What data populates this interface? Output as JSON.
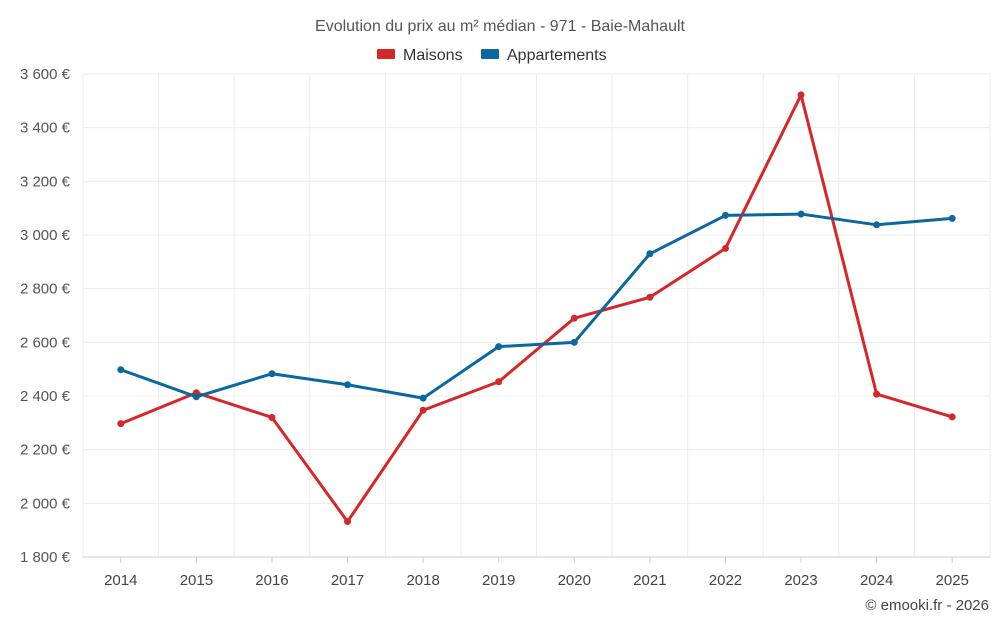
{
  "chart_data": {
    "type": "line",
    "title": "Evolution du prix au m² médian - 971 - Baie-Mahault",
    "categories": [
      "2014",
      "2015",
      "2016",
      "2017",
      "2018",
      "2019",
      "2020",
      "2021",
      "2022",
      "2023",
      "2024",
      "2025"
    ],
    "series": [
      {
        "name": "Maisons",
        "color": "#d62728",
        "values": [
          2297,
          2412,
          2320,
          1932,
          2347,
          2453,
          2690,
          2768,
          2950,
          3522,
          2407,
          2322
        ]
      },
      {
        "name": "Appartements",
        "color": "#0b67a0",
        "values": [
          2498,
          2397,
          2483,
          2442,
          2392,
          2584,
          2600,
          2930,
          3073,
          3078,
          3038,
          3062
        ]
      }
    ],
    "ylim": [
      1800,
      3600
    ],
    "y_ticks": [
      {
        "value": 1800,
        "label": "1 800 €"
      },
      {
        "value": 2000,
        "label": "2 000 €"
      },
      {
        "value": 2200,
        "label": "2 200 €"
      },
      {
        "value": 2400,
        "label": "2 400 €"
      },
      {
        "value": 2600,
        "label": "2 600 €"
      },
      {
        "value": 2800,
        "label": "2 800 €"
      },
      {
        "value": 3000,
        "label": "3 000 €"
      },
      {
        "value": 3200,
        "label": "3 200 €"
      },
      {
        "value": 3400,
        "label": "3 400 €"
      },
      {
        "value": 3600,
        "label": "3 600 €"
      }
    ],
    "grid": true,
    "legend_position": "top-center",
    "credit": "© emooki.fr - 2026"
  }
}
